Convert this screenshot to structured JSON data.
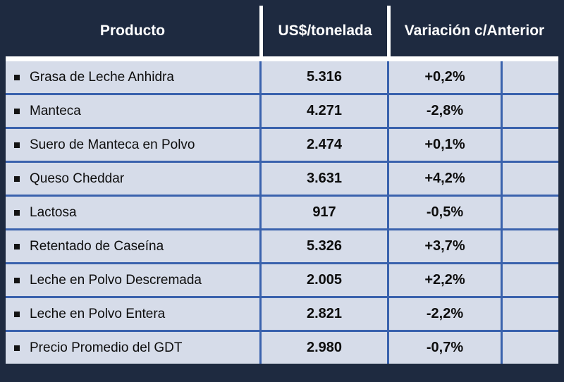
{
  "chart_data": {
    "type": "table",
    "columns": [
      "Producto",
      "US$/tonelada",
      "Variación c/Anterior"
    ],
    "rows": [
      {
        "producto": "Grasa de Leche Anhidra",
        "precio": "5.316",
        "variacion": "+0,2%"
      },
      {
        "producto": "Manteca",
        "precio": "4.271",
        "variacion": "-2,8%"
      },
      {
        "producto": "Suero de Manteca en Polvo",
        "precio": "2.474",
        "variacion": "+0,1%"
      },
      {
        "producto": "Queso Cheddar",
        "precio": "3.631",
        "variacion": "+4,2%"
      },
      {
        "producto": "Lactosa",
        "precio": "917",
        "variacion": "-0,5%"
      },
      {
        "producto": "Retentado de Caseína",
        "precio": "5.326",
        "variacion": "+3,7%"
      },
      {
        "producto": "Leche en Polvo Descremada",
        "precio": "2.005",
        "variacion": "+2,2%"
      },
      {
        "producto": "Leche en Polvo Entera",
        "precio": "2.821",
        "variacion": "-2,2%"
      },
      {
        "producto": "Precio Promedio del GDT",
        "precio": "2.980",
        "variacion": "-0,7%"
      }
    ],
    "colors": {
      "header_bg": "#1E2A40",
      "row_bg": "#D6DCE9",
      "grid_line": "#3A62AD",
      "header_text": "#FFFFFF",
      "body_text": "#0D0D0D",
      "bullet": "#141414"
    }
  }
}
